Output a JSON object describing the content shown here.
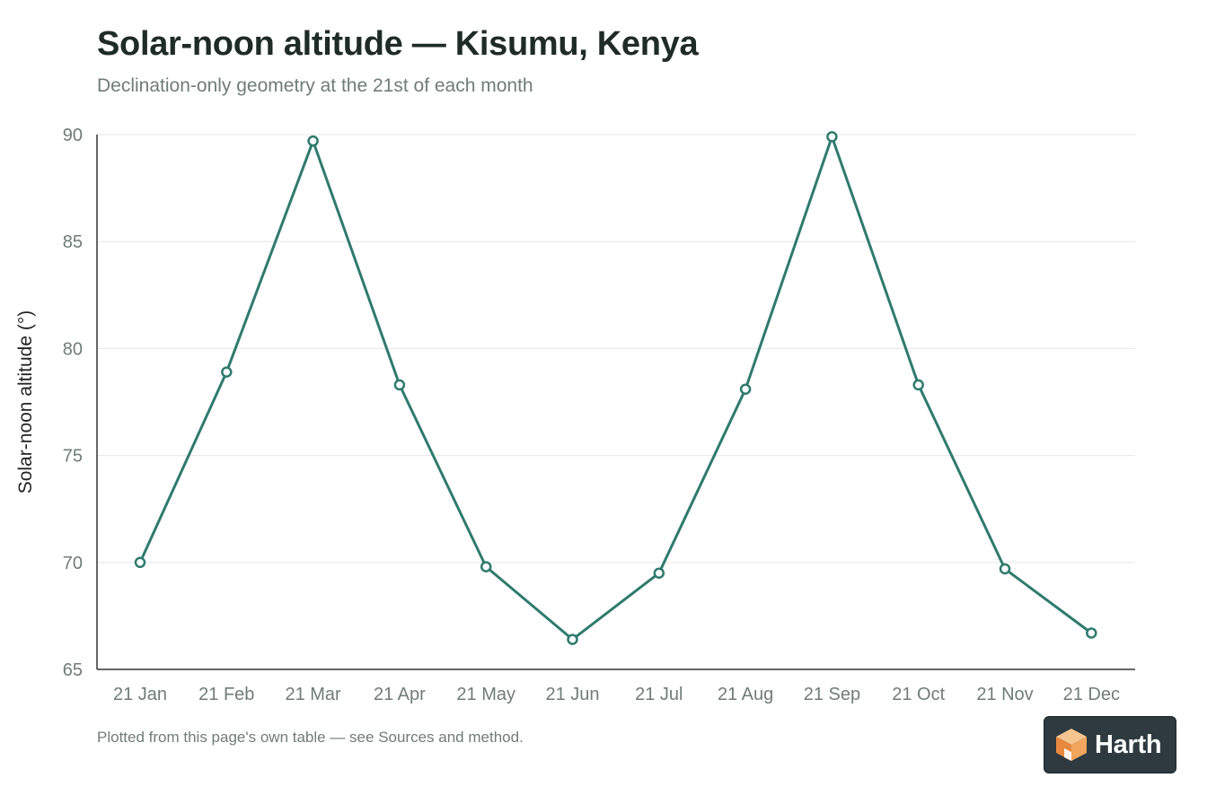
{
  "header": {
    "title": "Solar-noon altitude — Kisumu, Kenya",
    "subtitle": "Declination-only geometry at the 21st of each month"
  },
  "footer": {
    "note": "Plotted from this page's own table — see Sources and method."
  },
  "brand": {
    "name": "Harth"
  },
  "colors": {
    "series": "#2f7a6e",
    "axis": "#333333",
    "grid": "#e6e6e6",
    "tick_text": "#6f7c78"
  },
  "chart_data": {
    "type": "line",
    "title": "Solar-noon altitude — Kisumu, Kenya",
    "subtitle": "Declination-only geometry at the 21st of each month",
    "xlabel": "",
    "ylabel": "Solar-noon altitude (°)",
    "categories": [
      "21 Jan",
      "21 Feb",
      "21 Mar",
      "21 Apr",
      "21 May",
      "21 Jun",
      "21 Jul",
      "21 Aug",
      "21 Sep",
      "21 Oct",
      "21 Nov",
      "21 Dec"
    ],
    "series": [
      {
        "values": [
          70.0,
          78.9,
          89.7,
          78.3,
          69.8,
          66.4,
          69.5,
          78.1,
          89.9,
          78.3,
          69.7,
          66.7
        ]
      }
    ],
    "ylim": [
      65,
      90
    ],
    "yticks": [
      65,
      70,
      75,
      80,
      85,
      90
    ],
    "grid": true,
    "legend": "none"
  }
}
